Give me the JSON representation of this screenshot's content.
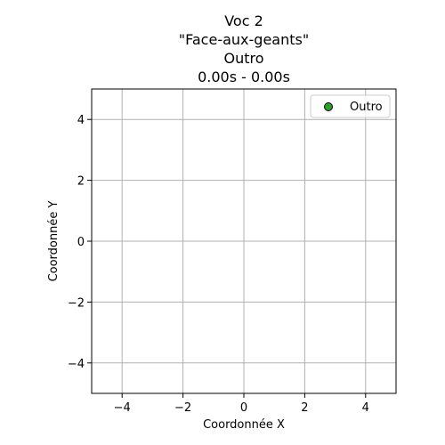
{
  "chart_data": {
    "type": "scatter",
    "title_lines": [
      "Voc 2",
      "\"Face-aux-geants\"",
      "Outro",
      "0.00s - 0.00s"
    ],
    "xlabel": "Coordonnée X",
    "ylabel": "Coordonnée Y",
    "xlim": [
      -5,
      5
    ],
    "ylim": [
      -5,
      5
    ],
    "x_ticks": [
      -4,
      -2,
      0,
      2,
      4
    ],
    "y_ticks": [
      -4,
      -2,
      0,
      2,
      4
    ],
    "x_tick_labels": [
      "−4",
      "−2",
      "0",
      "2",
      "4"
    ],
    "y_tick_labels": [
      "−4",
      "−2",
      "0",
      "2",
      "4"
    ],
    "grid": true,
    "legend_position": "top-right",
    "series": [
      {
        "name": "Outro",
        "color": "#2ca02c",
        "edge_color": "#000000",
        "points": []
      }
    ]
  }
}
